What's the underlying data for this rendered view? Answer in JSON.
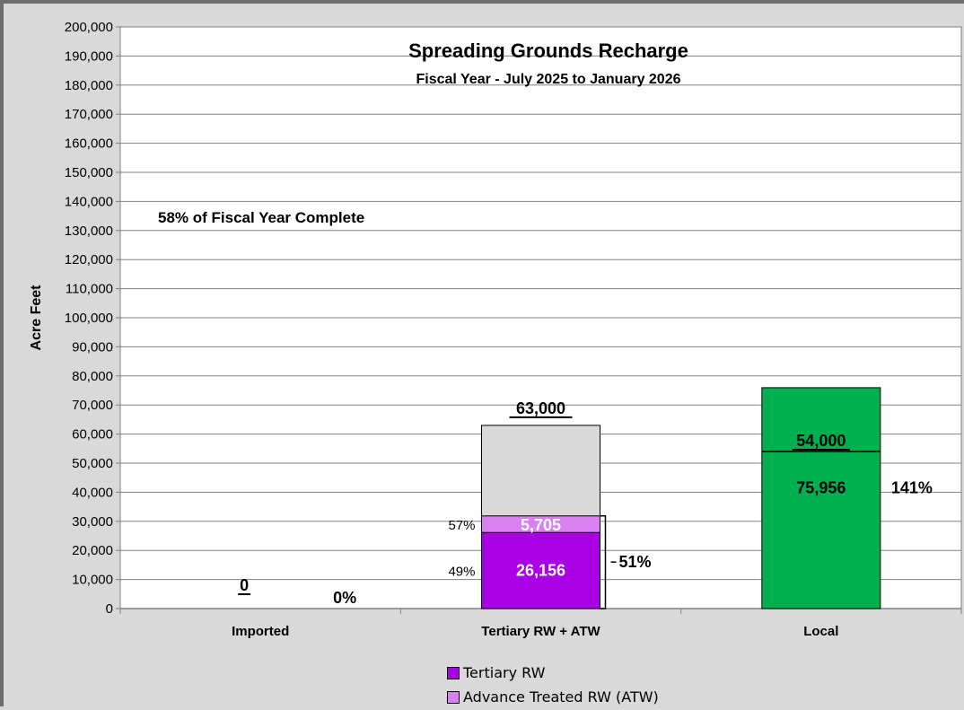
{
  "chart_data": {
    "type": "bar",
    "title": "Spreading Grounds Recharge",
    "subtitle": "Fiscal Year - July 2025 to January 2026",
    "ylabel": "Acre Feet",
    "xlabel": "",
    "ylim": [
      0,
      200000
    ],
    "ytick_step": 10000,
    "grid": true,
    "annotation": "58% of Fiscal Year Complete",
    "categories": [
      "Imported",
      "Tertiary RW + ATW",
      "Local"
    ],
    "series": [
      {
        "name": "Tertiary RW",
        "color": "#aa00e6",
        "values": [
          0,
          26156,
          0
        ]
      },
      {
        "name": "Advance Treated RW (ATW)",
        "color": "#d980f2",
        "values": [
          0,
          5705,
          0
        ]
      }
    ],
    "local": {
      "value": 75956,
      "value_label": "75,956",
      "color": "#00b050",
      "pct": "141%"
    },
    "targets": [
      {
        "category": "Imported",
        "value": 0,
        "label": "0",
        "pct": "0%"
      },
      {
        "category": "Tertiary RW + ATW",
        "value": 63000,
        "label": "63,000",
        "color": "#d9d9d9"
      },
      {
        "category": "Local",
        "value": 54000,
        "label": "54,000"
      }
    ],
    "tertiary_labels": {
      "tertiary_value": "26,156",
      "atw_value": "5,705",
      "tertiary_pct": "49%",
      "atw_pct": "57%",
      "combined_pct": "51%"
    },
    "yticks": [
      "0",
      "10,000",
      "20,000",
      "30,000",
      "40,000",
      "50,000",
      "60,000",
      "70,000",
      "80,000",
      "90,000",
      "100,000",
      "110,000",
      "120,000",
      "130,000",
      "140,000",
      "150,000",
      "160,000",
      "170,000",
      "180,000",
      "190,000",
      "200,000"
    ],
    "legend": [
      "Tertiary RW",
      "Advance Treated RW (ATW)"
    ]
  }
}
